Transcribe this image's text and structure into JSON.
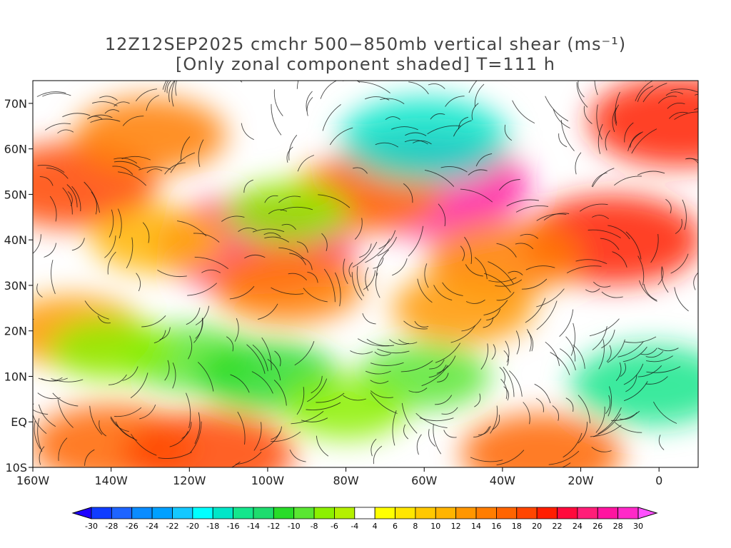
{
  "title": {
    "line1": "12Z12SEP2025 cmchr 500−850mb vertical shear (ms⁻¹)",
    "line2": "[Only zonal component shaded] T=111 h"
  },
  "map": {
    "extent": {
      "lon_min": -160,
      "lon_max": 10,
      "lat_min": -10,
      "lat_max": 75
    },
    "lat_ticks": [
      {
        "value": 70,
        "label": "70N"
      },
      {
        "value": 60,
        "label": "60N"
      },
      {
        "value": 50,
        "label": "50N"
      },
      {
        "value": 40,
        "label": "40N"
      },
      {
        "value": 30,
        "label": "30N"
      },
      {
        "value": 20,
        "label": "20N"
      },
      {
        "value": 10,
        "label": "10N"
      },
      {
        "value": 0,
        "label": "EQ"
      },
      {
        "value": -10,
        "label": "10S"
      }
    ],
    "lon_ticks": [
      {
        "value": -160,
        "label": "160W"
      },
      {
        "value": -140,
        "label": "140W"
      },
      {
        "value": -120,
        "label": "120W"
      },
      {
        "value": -100,
        "label": "100W"
      },
      {
        "value": -80,
        "label": "80W"
      },
      {
        "value": -60,
        "label": "60W"
      },
      {
        "value": -40,
        "label": "40W"
      },
      {
        "value": -20,
        "label": "20W"
      },
      {
        "value": 0,
        "label": "0"
      }
    ],
    "shear_features": [
      {
        "lon": -103,
        "lat": 39,
        "value": 24
      },
      {
        "lon": -60,
        "lat": 52,
        "value": 26
      },
      {
        "lon": -150,
        "lat": 52,
        "value": 18
      },
      {
        "lon": 5,
        "lat": 66,
        "value": 20
      },
      {
        "lon": -12,
        "lat": 40,
        "value": 20
      },
      {
        "lon": -130,
        "lat": 63,
        "value": 14
      },
      {
        "lon": -75,
        "lat": 50,
        "value": 14
      },
      {
        "lon": -95,
        "lat": 30,
        "value": 14
      },
      {
        "lon": -40,
        "lat": 36,
        "value": 14
      },
      {
        "lon": -50,
        "lat": 25,
        "value": 12
      },
      {
        "lon": -150,
        "lat": 20,
        "value": 12
      },
      {
        "lon": -128,
        "lat": 40,
        "value": 10
      },
      {
        "lon": -140,
        "lat": -5,
        "value": 16
      },
      {
        "lon": -115,
        "lat": -7,
        "value": 18
      },
      {
        "lon": -30,
        "lat": -7,
        "value": 16
      },
      {
        "lon": -60,
        "lat": 62,
        "value": -18
      },
      {
        "lon": -120,
        "lat": 14,
        "value": -10
      },
      {
        "lon": -100,
        "lat": 10,
        "value": -12
      },
      {
        "lon": -60,
        "lat": 10,
        "value": -10
      },
      {
        "lon": -2,
        "lat": 8,
        "value": -16
      },
      {
        "lon": -95,
        "lat": 46,
        "value": -8
      },
      {
        "lon": -140,
        "lat": 16,
        "value": -8
      },
      {
        "lon": -80,
        "lat": 3,
        "value": -8
      }
    ]
  },
  "colorbar": {
    "labels": [
      "-30",
      "-28",
      "-26",
      "-24",
      "-22",
      "-20",
      "-18",
      "-16",
      "-14",
      "-12",
      "-10",
      "-8",
      "-6",
      "-4",
      "4",
      "6",
      "8",
      "10",
      "12",
      "14",
      "16",
      "18",
      "20",
      "22",
      "24",
      "26",
      "28",
      "30"
    ],
    "colors": [
      "#1e00ff",
      "#0f3cff",
      "#1e64ff",
      "#0a8cff",
      "#00a0ff",
      "#14c8ff",
      "#00ffff",
      "#00e6c8",
      "#14e68c",
      "#1edc6e",
      "#28dc28",
      "#5ae632",
      "#8cf000",
      "#b4f000",
      "#ffffff",
      "#ffff00",
      "#ffe600",
      "#ffc800",
      "#ffb400",
      "#ff9600",
      "#ff7d00",
      "#ff6400",
      "#ff4600",
      "#ff1e00",
      "#ff0a3c",
      "#ff1e78",
      "#ff14a0",
      "#ff28c8",
      "#ff50ff"
    ]
  }
}
